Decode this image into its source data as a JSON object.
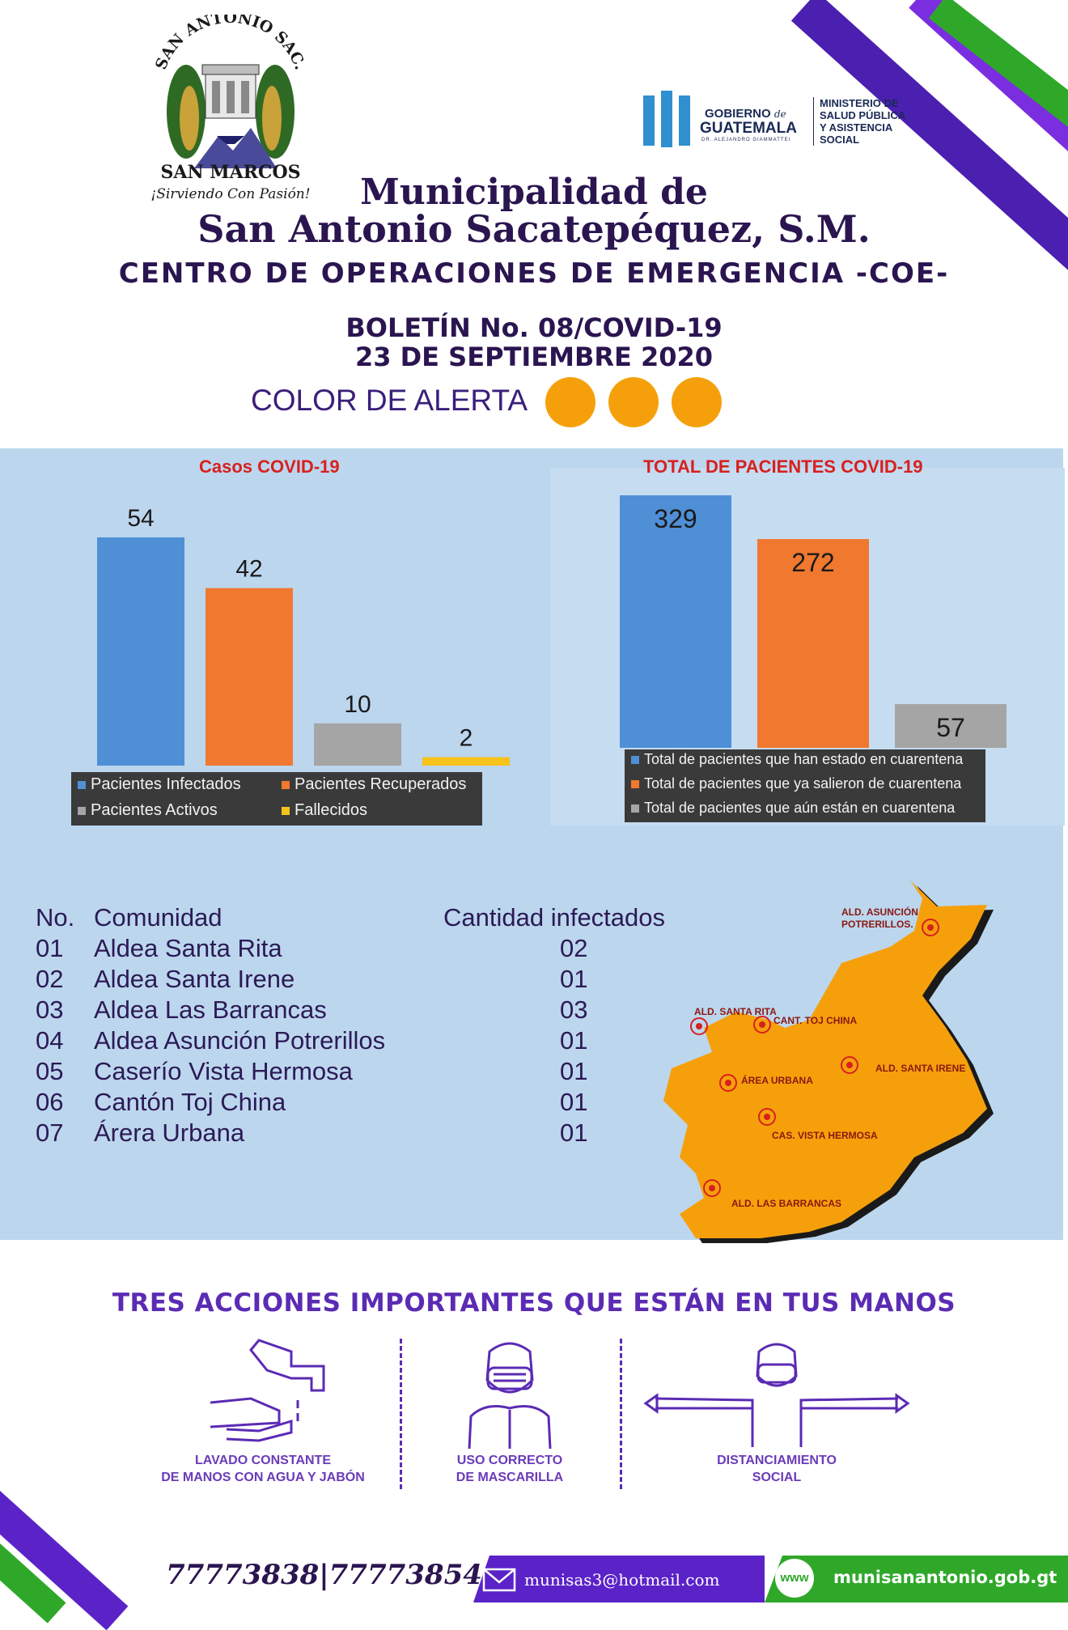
{
  "logo": {
    "arc_text": "SAN ANTONIO SAC.",
    "place": "SAN MARCOS",
    "motto": "¡Sirviendo Con Pasión!"
  },
  "gov_logo": {
    "line1": "GOBIERNO",
    "de": "de",
    "line2": "GUATEMALA",
    "sub": "DR. ALEJANDRO GIAMMATTEI",
    "ministry": [
      "MINISTERIO DE",
      "SALUD PÚBLICA",
      "Y ASISTENCIA",
      "SOCIAL"
    ]
  },
  "header": {
    "title_line1": "Municipalidad de",
    "title_line2": "San Antonio Sacatepéquez, S.M.",
    "subtitle": "CENTRO DE OPERACIONES DE EMERGENCIA -COE-",
    "bulletin": "BOLETÍN No. 08/COVID-19",
    "date": "23 DE SEPTIEMBRE 2020",
    "alert_label": "COLOR DE ALERTA",
    "alert_color": "#f5a00b"
  },
  "chart_data": [
    {
      "type": "bar",
      "title": "Casos COVID-19",
      "categories": [
        "Pacientes Infectados",
        "Pacientes Recuperados",
        "Pacientes Activos",
        "Fallecidos"
      ],
      "values": [
        54,
        42,
        10,
        2
      ],
      "colors": [
        "#4f8fd6",
        "#f0782f",
        "#a5a5a5",
        "#f7c21a"
      ],
      "legend": "bottom"
    },
    {
      "type": "bar",
      "title": "TOTAL DE PACIENTES COVID-19",
      "categories": [
        "Total de pacientes que han estado en cuarentena",
        "Total de pacientes que ya salieron de cuarentena",
        "Total de pacientes que aún están en cuarentena"
      ],
      "values": [
        329,
        272,
        57
      ],
      "colors": [
        "#4f8fd6",
        "#f0782f",
        "#a5a5a5"
      ],
      "legend": "bottom"
    }
  ],
  "communities": {
    "headers": [
      "No.",
      "Comunidad",
      "Cantidad infectados"
    ],
    "rows": [
      [
        "01",
        "Aldea Santa Rita",
        "02"
      ],
      [
        "02",
        "Aldea Santa Irene",
        "01"
      ],
      [
        "03",
        "Aldea Las Barrancas",
        "03"
      ],
      [
        "04",
        "Aldea Asunción Potrerillos",
        "01"
      ],
      [
        "05",
        "Caserío Vista Hermosa",
        "01"
      ],
      [
        "06",
        "Cantón Toj China",
        "01"
      ],
      [
        "07",
        "Árera Urbana",
        "01"
      ]
    ]
  },
  "map": {
    "labels": [
      "ALD. ASUNCIÓN",
      "POTRERILLOS.",
      "ALD. SANTA RITA",
      "CANT. TOJ CHINA",
      "ALD. SANTA IRENE",
      "ÁREA URBANA",
      "CAS. VISTA HERMOSA",
      "ALD. LAS BARRANCAS"
    ]
  },
  "actions": {
    "title": "TRES ACCIONES IMPORTANTES QUE ESTÁN EN TUS MANOS",
    "items": [
      {
        "icon": "handwashing-icon",
        "line1": "LAVADO CONSTANTE",
        "line2": "DE MANOS CON AGUA Y JABÓN"
      },
      {
        "icon": "face-mask-icon",
        "line1": "USO CORRECTO",
        "line2": "DE MASCARILLA"
      },
      {
        "icon": "social-distancing-icon",
        "line1": "DISTANCIAMIENTO",
        "line2": "SOCIAL"
      }
    ]
  },
  "footer": {
    "phones": "77773838|77773854",
    "email": "munisas3@hotmail.com",
    "www": "www",
    "website": "munisanantonio.gob.gt",
    "colors": {
      "purple": "#5b22c8",
      "green": "#2fa82a"
    }
  }
}
